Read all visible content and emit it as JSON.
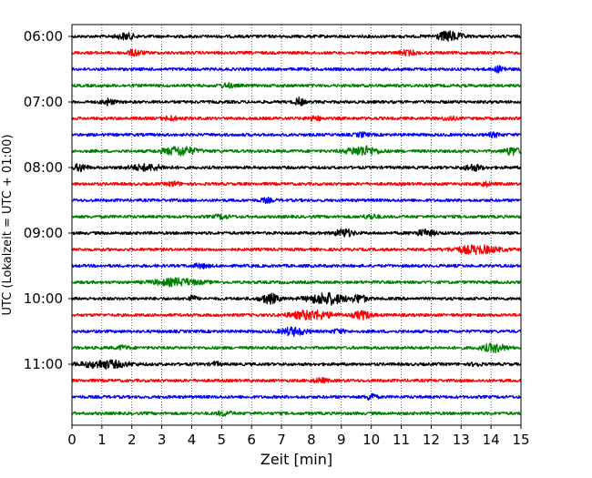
{
  "chart_data": {
    "type": "line",
    "title": "",
    "xlabel": "Zeit  [min]",
    "ylabel": "UTC (Lokalzeit = UTC + 01:00)",
    "xlim": [
      0,
      15
    ],
    "x_ticks": [
      0,
      1,
      2,
      3,
      4,
      5,
      6,
      7,
      8,
      9,
      10,
      11,
      12,
      13,
      14,
      15
    ],
    "y_ticks": [
      "06:00",
      "07:00",
      "08:00",
      "09:00",
      "10:00",
      "11:00"
    ],
    "grid": "vertical dotted at every minute",
    "legend": "none",
    "trace_interval_min": 15,
    "trace_colors": [
      "#000000",
      "#ff0000",
      "#0000ff",
      "#008000"
    ],
    "traces": [
      {
        "start": "06:00",
        "color": "#000000",
        "bursts": [
          [
            1.8,
            0.6,
            0.3
          ],
          [
            12.6,
            0.8,
            0.5
          ]
        ]
      },
      {
        "start": "06:15",
        "color": "#ff0000",
        "bursts": [
          [
            2.1,
            0.5,
            0.3
          ],
          [
            11.2,
            0.6,
            0.2
          ]
        ]
      },
      {
        "start": "06:30",
        "color": "#0000ff",
        "bursts": [
          [
            14.3,
            0.4,
            0.3
          ]
        ]
      },
      {
        "start": "06:45",
        "color": "#008000",
        "bursts": [
          [
            5.2,
            0.5,
            0.2
          ]
        ]
      },
      {
        "start": "07:00",
        "color": "#000000",
        "bursts": [
          [
            1.2,
            0.4,
            0.3
          ],
          [
            7.6,
            0.3,
            0.4
          ]
        ]
      },
      {
        "start": "07:15",
        "color": "#ff0000",
        "bursts": [
          [
            3.3,
            0.5,
            0.2
          ],
          [
            8.1,
            0.5,
            0.2
          ],
          [
            12.6,
            0.4,
            0.2
          ]
        ]
      },
      {
        "start": "07:30",
        "color": "#0000ff",
        "bursts": [
          [
            9.7,
            0.4,
            0.2
          ],
          [
            14.1,
            0.4,
            0.2
          ]
        ]
      },
      {
        "start": "07:45",
        "color": "#008000",
        "bursts": [
          [
            3.6,
            1.1,
            0.45
          ],
          [
            9.7,
            1.0,
            0.5
          ],
          [
            14.7,
            0.5,
            0.4
          ]
        ]
      },
      {
        "start": "08:00",
        "color": "#000000",
        "bursts": [
          [
            0.3,
            0.4,
            0.4
          ],
          [
            2.5,
            1.2,
            0.3
          ],
          [
            13.4,
            0.6,
            0.3
          ]
        ]
      },
      {
        "start": "08:15",
        "color": "#ff0000",
        "bursts": [
          [
            3.4,
            0.4,
            0.2
          ],
          [
            13.8,
            0.4,
            0.2
          ]
        ]
      },
      {
        "start": "08:30",
        "color": "#0000ff",
        "bursts": [
          [
            6.5,
            0.4,
            0.2
          ]
        ]
      },
      {
        "start": "08:45",
        "color": "#008000",
        "bursts": [
          [
            5.0,
            0.5,
            0.2
          ],
          [
            10.0,
            0.5,
            0.2
          ]
        ]
      },
      {
        "start": "09:00",
        "color": "#000000",
        "bursts": [
          [
            9.1,
            0.6,
            0.4
          ],
          [
            11.8,
            0.7,
            0.3
          ]
        ]
      },
      {
        "start": "09:15",
        "color": "#ff0000",
        "bursts": [
          [
            13.5,
            1.5,
            0.4
          ]
        ]
      },
      {
        "start": "09:30",
        "color": "#0000ff",
        "bursts": [
          [
            4.3,
            0.5,
            0.2
          ]
        ]
      },
      {
        "start": "09:45",
        "color": "#008000",
        "bursts": [
          [
            3.5,
            1.5,
            0.35
          ]
        ]
      },
      {
        "start": "10:00",
        "color": "#000000",
        "bursts": [
          [
            4.0,
            0.3,
            0.3
          ],
          [
            6.6,
            0.6,
            0.5
          ],
          [
            8.5,
            1.2,
            0.6
          ],
          [
            9.6,
            0.5,
            0.4
          ]
        ]
      },
      {
        "start": "10:15",
        "color": "#ff0000",
        "bursts": [
          [
            8.0,
            1.4,
            0.45
          ],
          [
            9.7,
            0.6,
            0.4
          ]
        ]
      },
      {
        "start": "10:30",
        "color": "#0000ff",
        "bursts": [
          [
            7.4,
            0.8,
            0.4
          ],
          [
            8.9,
            0.4,
            0.2
          ]
        ]
      },
      {
        "start": "10:45",
        "color": "#008000",
        "bursts": [
          [
            14.1,
            0.8,
            0.4
          ],
          [
            1.7,
            0.4,
            0.2
          ]
        ]
      },
      {
        "start": "11:00",
        "color": "#000000",
        "bursts": [
          [
            1.1,
            1.5,
            0.4
          ],
          [
            4.8,
            0.3,
            0.2
          ],
          [
            13.5,
            0.3,
            0.2
          ]
        ]
      },
      {
        "start": "11:15",
        "color": "#ff0000",
        "bursts": [
          [
            8.3,
            0.5,
            0.2
          ]
        ]
      },
      {
        "start": "11:30",
        "color": "#0000ff",
        "bursts": [
          [
            10.0,
            0.3,
            0.4
          ]
        ]
      },
      {
        "start": "11:45",
        "color": "#008000",
        "bursts": [
          [
            5.1,
            0.5,
            0.2
          ]
        ]
      }
    ]
  }
}
